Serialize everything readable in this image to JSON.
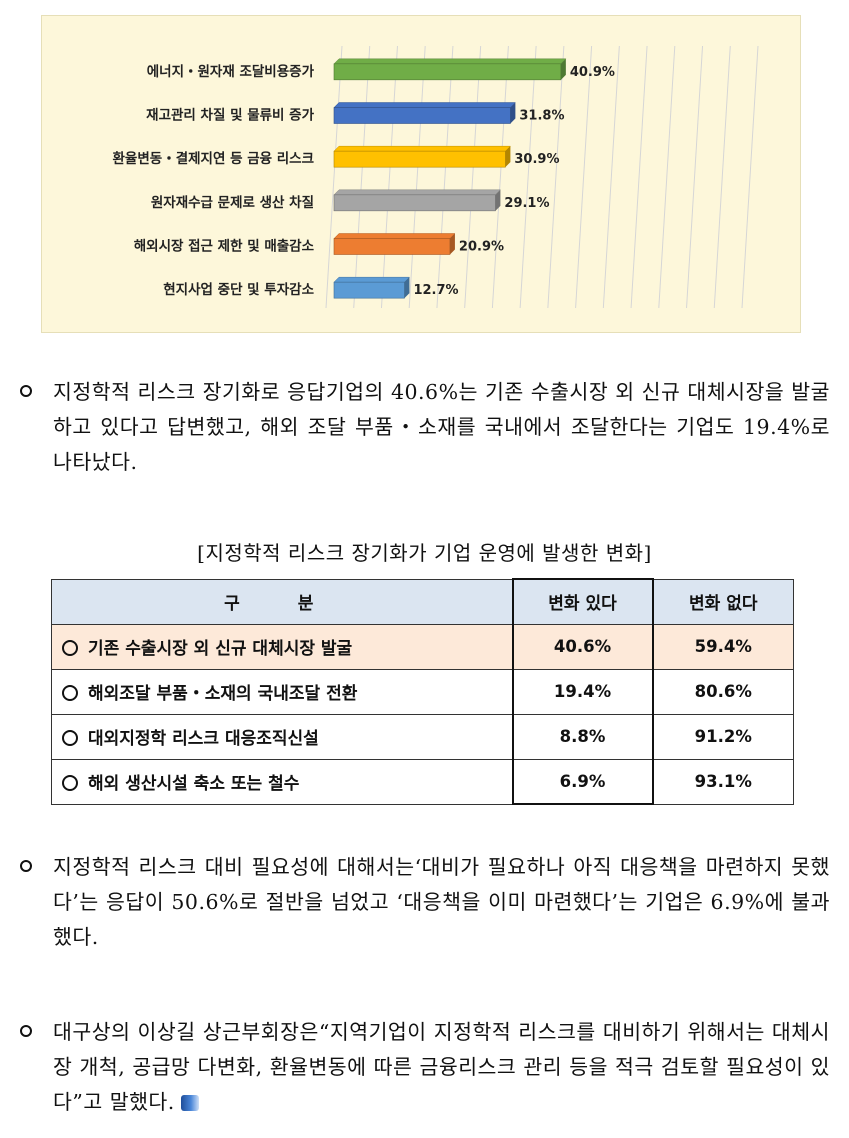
{
  "chart_data": {
    "type": "bar",
    "orientation": "horizontal",
    "categories": [
      "에너지・원자재 조달비용증가",
      "재고관리 차질 및 물류비 증가",
      "환율변동・결제지연 등 금융 리스크",
      "원자재수급 문제로 생산 차질",
      "해외시장 접근 제한 및 매출감소",
      "현지사업 중단 및 투자감소"
    ],
    "values": [
      40.9,
      31.8,
      30.9,
      29.1,
      20.9,
      12.7
    ],
    "value_labels": [
      "40.9%",
      "31.8%",
      "30.9%",
      "29.1%",
      "20.9%",
      "12.7%"
    ],
    "colors": [
      "#70ad47",
      "#4472c4",
      "#ffc000",
      "#a5a5a5",
      "#ed7d31",
      "#5b9bd5"
    ],
    "xlim": [
      0,
      75
    ],
    "grid": true
  },
  "paragraph1": "지정학적 리스크 장기화로 응답기업의 40.6%는 기존 수출시장 외 신규 대체시장을 발굴하고 있다고 답변했고, 해외 조달 부품・소재를 국내에서 조달한다는 기업도 19.4%로 나타났다.",
  "table": {
    "caption": "[지정학적 리스크 장기화가 기업 운영에 발생한 변화]",
    "headers": [
      "구 분",
      "변화 있다",
      "변화 없다"
    ],
    "rows": [
      {
        "item": "기존 수출시장 외 신규 대체시장 발굴",
        "yes": "40.6%",
        "no": "59.4%"
      },
      {
        "item": "해외조달 부품・소재의 국내조달 전환",
        "yes": "19.4%",
        "no": "80.6%"
      },
      {
        "item": "대외지정학 리스크 대응조직신설",
        "yes": "8.8%",
        "no": "91.2%"
      },
      {
        "item": "해외 생산시설 축소 또는 철수",
        "yes": "6.9%",
        "no": "93.1%"
      }
    ]
  },
  "paragraph2": "지정학적 리스크 대비 필요성에 대해서는‘대비가 필요하나 아직 대응책을 마련하지 못했다’는 응답이 50.6%로 절반을 넘었고 ‘대응책을 이미 마련했다’는 기업은 6.9%에 불과했다.",
  "paragraph3": "대구상의 이상길 상근부회장은“지역기업이 지정학적 리스크를 대비하기 위해서는 대체시장 개척, 공급망 다변화, 환율변동에 따른 금융리스크 관리 등을 적극 검토할 필요성이 있다”고 말했다."
}
